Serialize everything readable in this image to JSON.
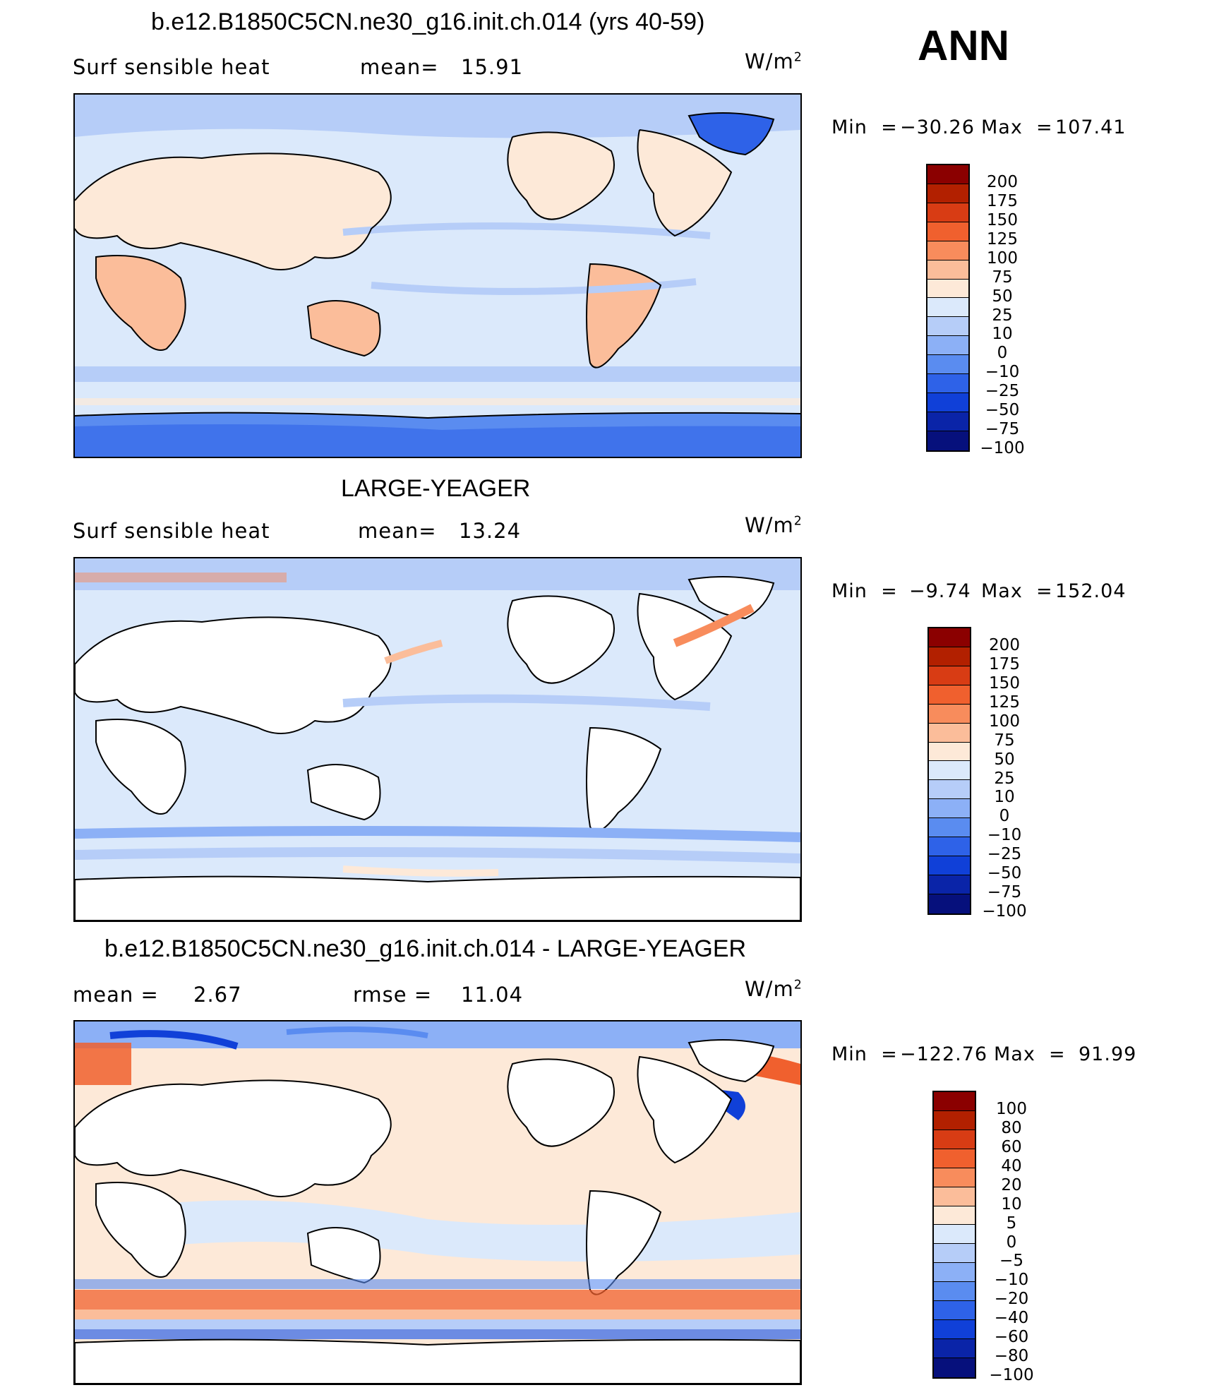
{
  "header": {
    "season": "ANN"
  },
  "panels": [
    {
      "title": "b.e12.B1850C5CN.ne30_g16.init.ch.014 (yrs 40-59)",
      "variable": "Surf  sensible  heat",
      "stat1_label": "mean=",
      "stat1_value": "15.91",
      "units": "W/m",
      "units_exp": "2",
      "min_label": "Min  =",
      "min_value": "−30.26",
      "max_label": "Max  =",
      "max_value": "107.41",
      "colorbar": {
        "colors": [
          "#8b0000",
          "#b22000",
          "#d83c14",
          "#f0602e",
          "#f88c5c",
          "#fbbd9a",
          "#fde9d8",
          "#dbe9fb",
          "#b6cdf8",
          "#8cb0f6",
          "#5a8cf0",
          "#2e62e8",
          "#1040d8",
          "#0a24a8",
          "#06107c"
        ],
        "labels": [
          "200",
          "175",
          "150",
          "125",
          "100",
          "75",
          "50",
          "25",
          "10",
          "0",
          "−10",
          "−25",
          "−50",
          "−75",
          "−100"
        ]
      }
    },
    {
      "title": "LARGE-YEAGER",
      "variable": "Surf  sensible  heat",
      "stat1_label": "mean=",
      "stat1_value": "13.24",
      "units": "W/m",
      "units_exp": "2",
      "min_label": "Min  =",
      "min_value": "−9.74",
      "max_label": "Max  =",
      "max_value": "152.04",
      "colorbar": {
        "colors": [
          "#8b0000",
          "#b22000",
          "#d83c14",
          "#f0602e",
          "#f88c5c",
          "#fbbd9a",
          "#fde9d8",
          "#dbe9fb",
          "#b6cdf8",
          "#8cb0f6",
          "#5a8cf0",
          "#2e62e8",
          "#1040d8",
          "#0a24a8",
          "#06107c"
        ],
        "labels": [
          "200",
          "175",
          "150",
          "125",
          "100",
          "75",
          "50",
          "25",
          "10",
          "0",
          "−10",
          "−25",
          "−50",
          "−75",
          "−100"
        ]
      }
    },
    {
      "title": "b.e12.B1850C5CN.ne30_g16.init.ch.014 - LARGE-YEAGER",
      "stat1_label": "mean =",
      "stat1_value": "2.67",
      "stat2_label": "rmse  =",
      "stat2_value": "11.04",
      "units": "W/m",
      "units_exp": "2",
      "min_label": "Min  =",
      "min_value": "−122.76",
      "max_label": "Max  =",
      "max_value": "91.99",
      "colorbar": {
        "colors": [
          "#8b0000",
          "#b22000",
          "#d83c14",
          "#f0602e",
          "#f88c5c",
          "#fbbd9a",
          "#fde9d8",
          "#dbe9fb",
          "#b6cdf8",
          "#8cb0f6",
          "#5a8cf0",
          "#2e62e8",
          "#1040d8",
          "#0a24a8",
          "#06107c"
        ],
        "labels": [
          "100",
          "80",
          "60",
          "40",
          "20",
          "10",
          "5",
          "0",
          "−5",
          "−10",
          "−20",
          "−40",
          "−60",
          "−80",
          "−100"
        ]
      }
    }
  ]
}
